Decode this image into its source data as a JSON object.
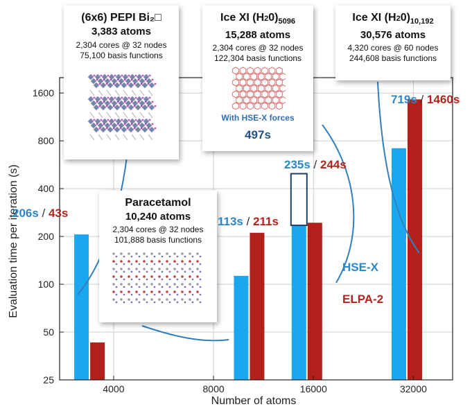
{
  "chart_data": {
    "type": "bar",
    "xlabel": "Number of atoms",
    "ylabel": "Evaluation time per iteration (s)",
    "y_scale": "log",
    "x_scale": "log",
    "ylim": [
      25,
      2000
    ],
    "xlim": [
      2750,
      42000
    ],
    "x_ticks": [
      4000,
      8000,
      16000,
      32000
    ],
    "x_tick_labels": [
      "4000",
      "8000",
      "16000",
      "32000"
    ],
    "y_ticks": [
      25,
      50,
      100,
      200,
      400,
      800,
      1600
    ],
    "y_tick_labels": [
      "25",
      "50",
      "100",
      "200",
      "400",
      "800",
      "1600"
    ],
    "grid": true,
    "x": [
      3383,
      10240,
      15288,
      30576
    ],
    "series": [
      {
        "name": "HSE-X",
        "color": "#1aa7ef",
        "values": [
          206,
          113,
          235,
          719
        ]
      },
      {
        "name": "ELPA-2",
        "color": "#b1201a",
        "values": [
          43,
          211,
          244,
          1460
        ]
      }
    ],
    "extra_point": {
      "series": "HSE-X",
      "x": 15288,
      "value": 497,
      "label": "With HSE-X forces"
    }
  },
  "annotations": {
    "pepi": {
      "name": "(6x6) PEPI Bi₂□",
      "atoms": "3,383 atoms",
      "cores": "2,304 cores @ 32 nodes",
      "basis": "75,100 basis functions"
    },
    "paracetamol": {
      "name": "Paracetamol",
      "atoms": "10,240 atoms",
      "cores": "2,304 cores @ 32 nodes",
      "basis": "101,888 basis functions"
    },
    "ice5096": {
      "name_main": "Ice XI (H",
      "name_sub1": "2",
      "name_mid": "0)",
      "name_sub2": "5096",
      "atoms": "15,288 atoms",
      "cores": "2,304 cores @ 32 nodes",
      "basis": "122,304 basis functions",
      "note": "With HSE-X forces",
      "time": "497s"
    },
    "ice10192": {
      "name_main": "Ice XI (H",
      "name_sub1": "2",
      "name_mid": "0)",
      "name_sub2": "10,192",
      "atoms": "30,576 atoms",
      "cores": "4,320 cores @ 60 nodes",
      "basis": "244,608 basis functions"
    }
  },
  "timing_labels": [
    {
      "hse": "206s",
      "sep": " / ",
      "elpa": "43s"
    },
    {
      "hse": "113s",
      "sep": " / ",
      "elpa": "211s"
    },
    {
      "hse": "235s",
      "sep": " / ",
      "elpa": "244s"
    },
    {
      "hse": "719s",
      "sep": " / ",
      "elpa": "1460s"
    }
  ],
  "legend": {
    "hse": "HSE-X",
    "elpa": "ELPA-2"
  }
}
